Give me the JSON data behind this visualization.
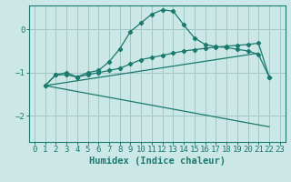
{
  "xlabel": "Humidex (Indice chaleur)",
  "background_color": "#cce8e6",
  "grid_color": "#a0c8c4",
  "line_color": "#1a7a6e",
  "xlim": [
    -0.5,
    23.5
  ],
  "ylim": [
    -2.6,
    0.55
  ],
  "yticks": [
    0,
    -1,
    -2
  ],
  "xticks": [
    0,
    1,
    2,
    3,
    4,
    5,
    6,
    7,
    8,
    9,
    10,
    11,
    12,
    13,
    14,
    15,
    16,
    17,
    18,
    19,
    20,
    21,
    22,
    23
  ],
  "line1_x": [
    1,
    2,
    3,
    4,
    5,
    6,
    7,
    8,
    9,
    10,
    11,
    12,
    13,
    14,
    15,
    16,
    17,
    18,
    19,
    20,
    21,
    22
  ],
  "line1_y": [
    -1.3,
    -1.05,
    -1.0,
    -1.1,
    -1.0,
    -0.95,
    -0.75,
    -0.45,
    -0.05,
    0.15,
    0.35,
    0.45,
    0.42,
    0.1,
    -0.2,
    -0.35,
    -0.4,
    -0.42,
    -0.46,
    -0.5,
    -0.58,
    -1.1
  ],
  "line2_x": [
    1,
    2,
    3,
    4,
    5,
    6,
    7,
    8,
    9,
    10,
    11,
    12,
    13,
    14,
    15,
    16,
    17,
    18,
    19,
    20,
    21,
    22
  ],
  "line2_y": [
    -1.3,
    -1.05,
    -1.05,
    -1.1,
    -1.05,
    -1.0,
    -0.95,
    -0.9,
    -0.8,
    -0.7,
    -0.65,
    -0.6,
    -0.55,
    -0.5,
    -0.47,
    -0.44,
    -0.41,
    -0.39,
    -0.37,
    -0.35,
    -0.32,
    -1.1
  ],
  "line3_x": [
    1,
    21
  ],
  "line3_y": [
    -1.3,
    -0.55
  ],
  "line4_x": [
    1,
    22
  ],
  "line4_y": [
    -1.3,
    -2.25
  ],
  "tick_fontsize": 6.5,
  "xlabel_fontsize": 7.5
}
